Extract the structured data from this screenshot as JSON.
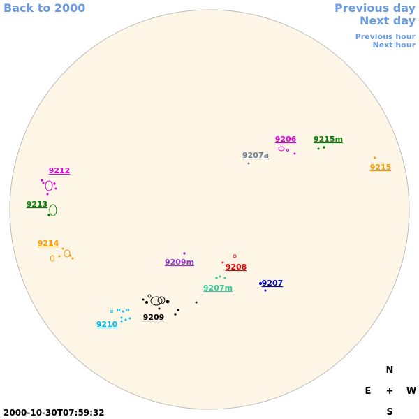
{
  "nav": {
    "back": "Back to 2000",
    "previous_day": "Previous day",
    "next_day": "Next day",
    "previous_hour": "Previous hour",
    "next_hour": "Next hour"
  },
  "compass": {
    "north": "N",
    "east": "E",
    "center": "+",
    "west": "W",
    "south": "S"
  },
  "timestamp": "2000-10-30T07:59:32",
  "regions": [
    {
      "label": "9206",
      "color": "#e000e0"
    },
    {
      "label": "9215m",
      "color": "#008000"
    },
    {
      "label": "9207a",
      "color": "#708090"
    },
    {
      "label": "9215",
      "color": "#ff9900"
    },
    {
      "label": "9212",
      "color": "#e000e0"
    },
    {
      "label": "9213",
      "color": "#008000"
    },
    {
      "label": "9214",
      "color": "#ff9900"
    },
    {
      "label": "9209m",
      "color": "#9933cc"
    },
    {
      "label": "9208",
      "color": "#e00000"
    },
    {
      "label": "9207m",
      "color": "#33cc99"
    },
    {
      "label": "9207",
      "color": "#0000cc"
    },
    {
      "label": "9210",
      "color": "#00bbee"
    },
    {
      "label": "9209",
      "color": "#000000"
    }
  ]
}
